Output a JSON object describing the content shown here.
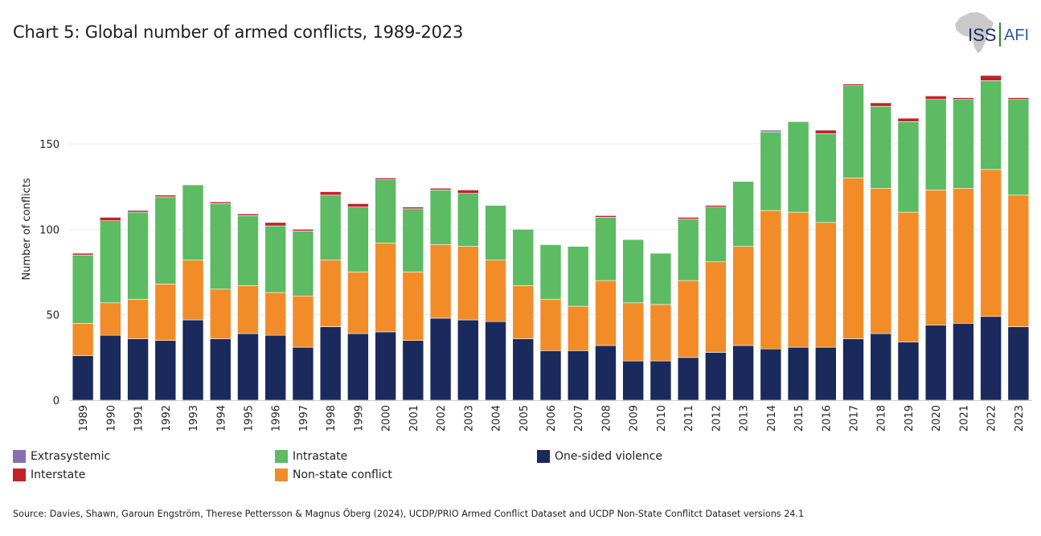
{
  "header": {
    "title": "Chart 5: Global number of armed conflicts, 1989-2023"
  },
  "logo": {
    "left_text": "ISS",
    "right_text": "AFI",
    "icon": "africa-map-icon"
  },
  "chart_data": {
    "type": "bar",
    "stacked": true,
    "title": "Chart 5: Global number of armed conflicts, 1989-2023",
    "xlabel": "",
    "ylabel": "Number of conflicts",
    "ylim": [
      0,
      190
    ],
    "yticks": [
      0,
      50,
      100,
      150
    ],
    "grid": true,
    "categories": [
      "1989",
      "1990",
      "1991",
      "1992",
      "1993",
      "1994",
      "1995",
      "1996",
      "1997",
      "1998",
      "1999",
      "2000",
      "2001",
      "2002",
      "2003",
      "2004",
      "2005",
      "2006",
      "2007",
      "2008",
      "2009",
      "2010",
      "2011",
      "2012",
      "2013",
      "2014",
      "2015",
      "2016",
      "2017",
      "2018",
      "2019",
      "2020",
      "2021",
      "2022",
      "2023"
    ],
    "series": [
      {
        "name": "One-sided violence",
        "color": "#1b2a5c",
        "values": [
          26,
          38,
          36,
          35,
          47,
          36,
          39,
          38,
          31,
          43,
          39,
          40,
          35,
          48,
          47,
          46,
          36,
          29,
          29,
          32,
          23,
          23,
          25,
          28,
          32,
          30,
          31,
          31,
          36,
          39,
          34,
          44,
          45,
          49,
          43
        ]
      },
      {
        "name": "Non-state conflict",
        "color": "#f28c28",
        "values": [
          19,
          19,
          23,
          33,
          35,
          29,
          28,
          25,
          30,
          39,
          36,
          52,
          40,
          43,
          43,
          36,
          31,
          30,
          26,
          38,
          34,
          33,
          45,
          53,
          58,
          81,
          79,
          73,
          94,
          85,
          76,
          79,
          79,
          86,
          77
        ]
      },
      {
        "name": "Intrastate",
        "color": "#5cbb63",
        "values": [
          40,
          48,
          51,
          51,
          44,
          50,
          41,
          39,
          38,
          38,
          38,
          37,
          37,
          32,
          31,
          32,
          33,
          32,
          35,
          37,
          37,
          30,
          36,
          32,
          38,
          46,
          53,
          52,
          54,
          48,
          53,
          53,
          52,
          52,
          56
        ]
      },
      {
        "name": "Interstate",
        "color": "#c0222b",
        "values": [
          1,
          2,
          1,
          1,
          0,
          1,
          1,
          2,
          1,
          2,
          2,
          1,
          1,
          1,
          2,
          0,
          0,
          0,
          0,
          1,
          0,
          0,
          1,
          1,
          0,
          0,
          0,
          2,
          1,
          2,
          2,
          2,
          1,
          3,
          1
        ]
      },
      {
        "name": "Extrasystemic",
        "color": "#8a6fb0",
        "values": [
          0,
          0,
          0,
          0,
          0,
          0,
          0,
          0,
          0,
          0,
          0,
          0,
          0,
          0,
          0,
          0,
          0,
          0,
          0,
          0,
          0,
          0,
          0,
          0,
          0,
          1,
          0,
          0,
          0,
          0,
          0,
          0,
          0,
          0,
          0
        ]
      }
    ],
    "legend": {
      "placement": "bottom",
      "entries": [
        {
          "label": "Extrasystemic",
          "color": "#8a6fb0"
        },
        {
          "label": "Intrastate",
          "color": "#5cbb63"
        },
        {
          "label": "One-sided violence",
          "color": "#1b2a5c"
        },
        {
          "label": "Interstate",
          "color": "#c0222b"
        },
        {
          "label": "Non-state conflict",
          "color": "#f28c28"
        }
      ]
    }
  },
  "source": {
    "text": "Source:  Davies, Shawn, Garoun Engström, Therese Pettersson & Magnus Öberg (2024), UCDP/PRIO Armed Conflict Dataset and UCDP Non-State Conflitct Dataset versions 24.1"
  }
}
